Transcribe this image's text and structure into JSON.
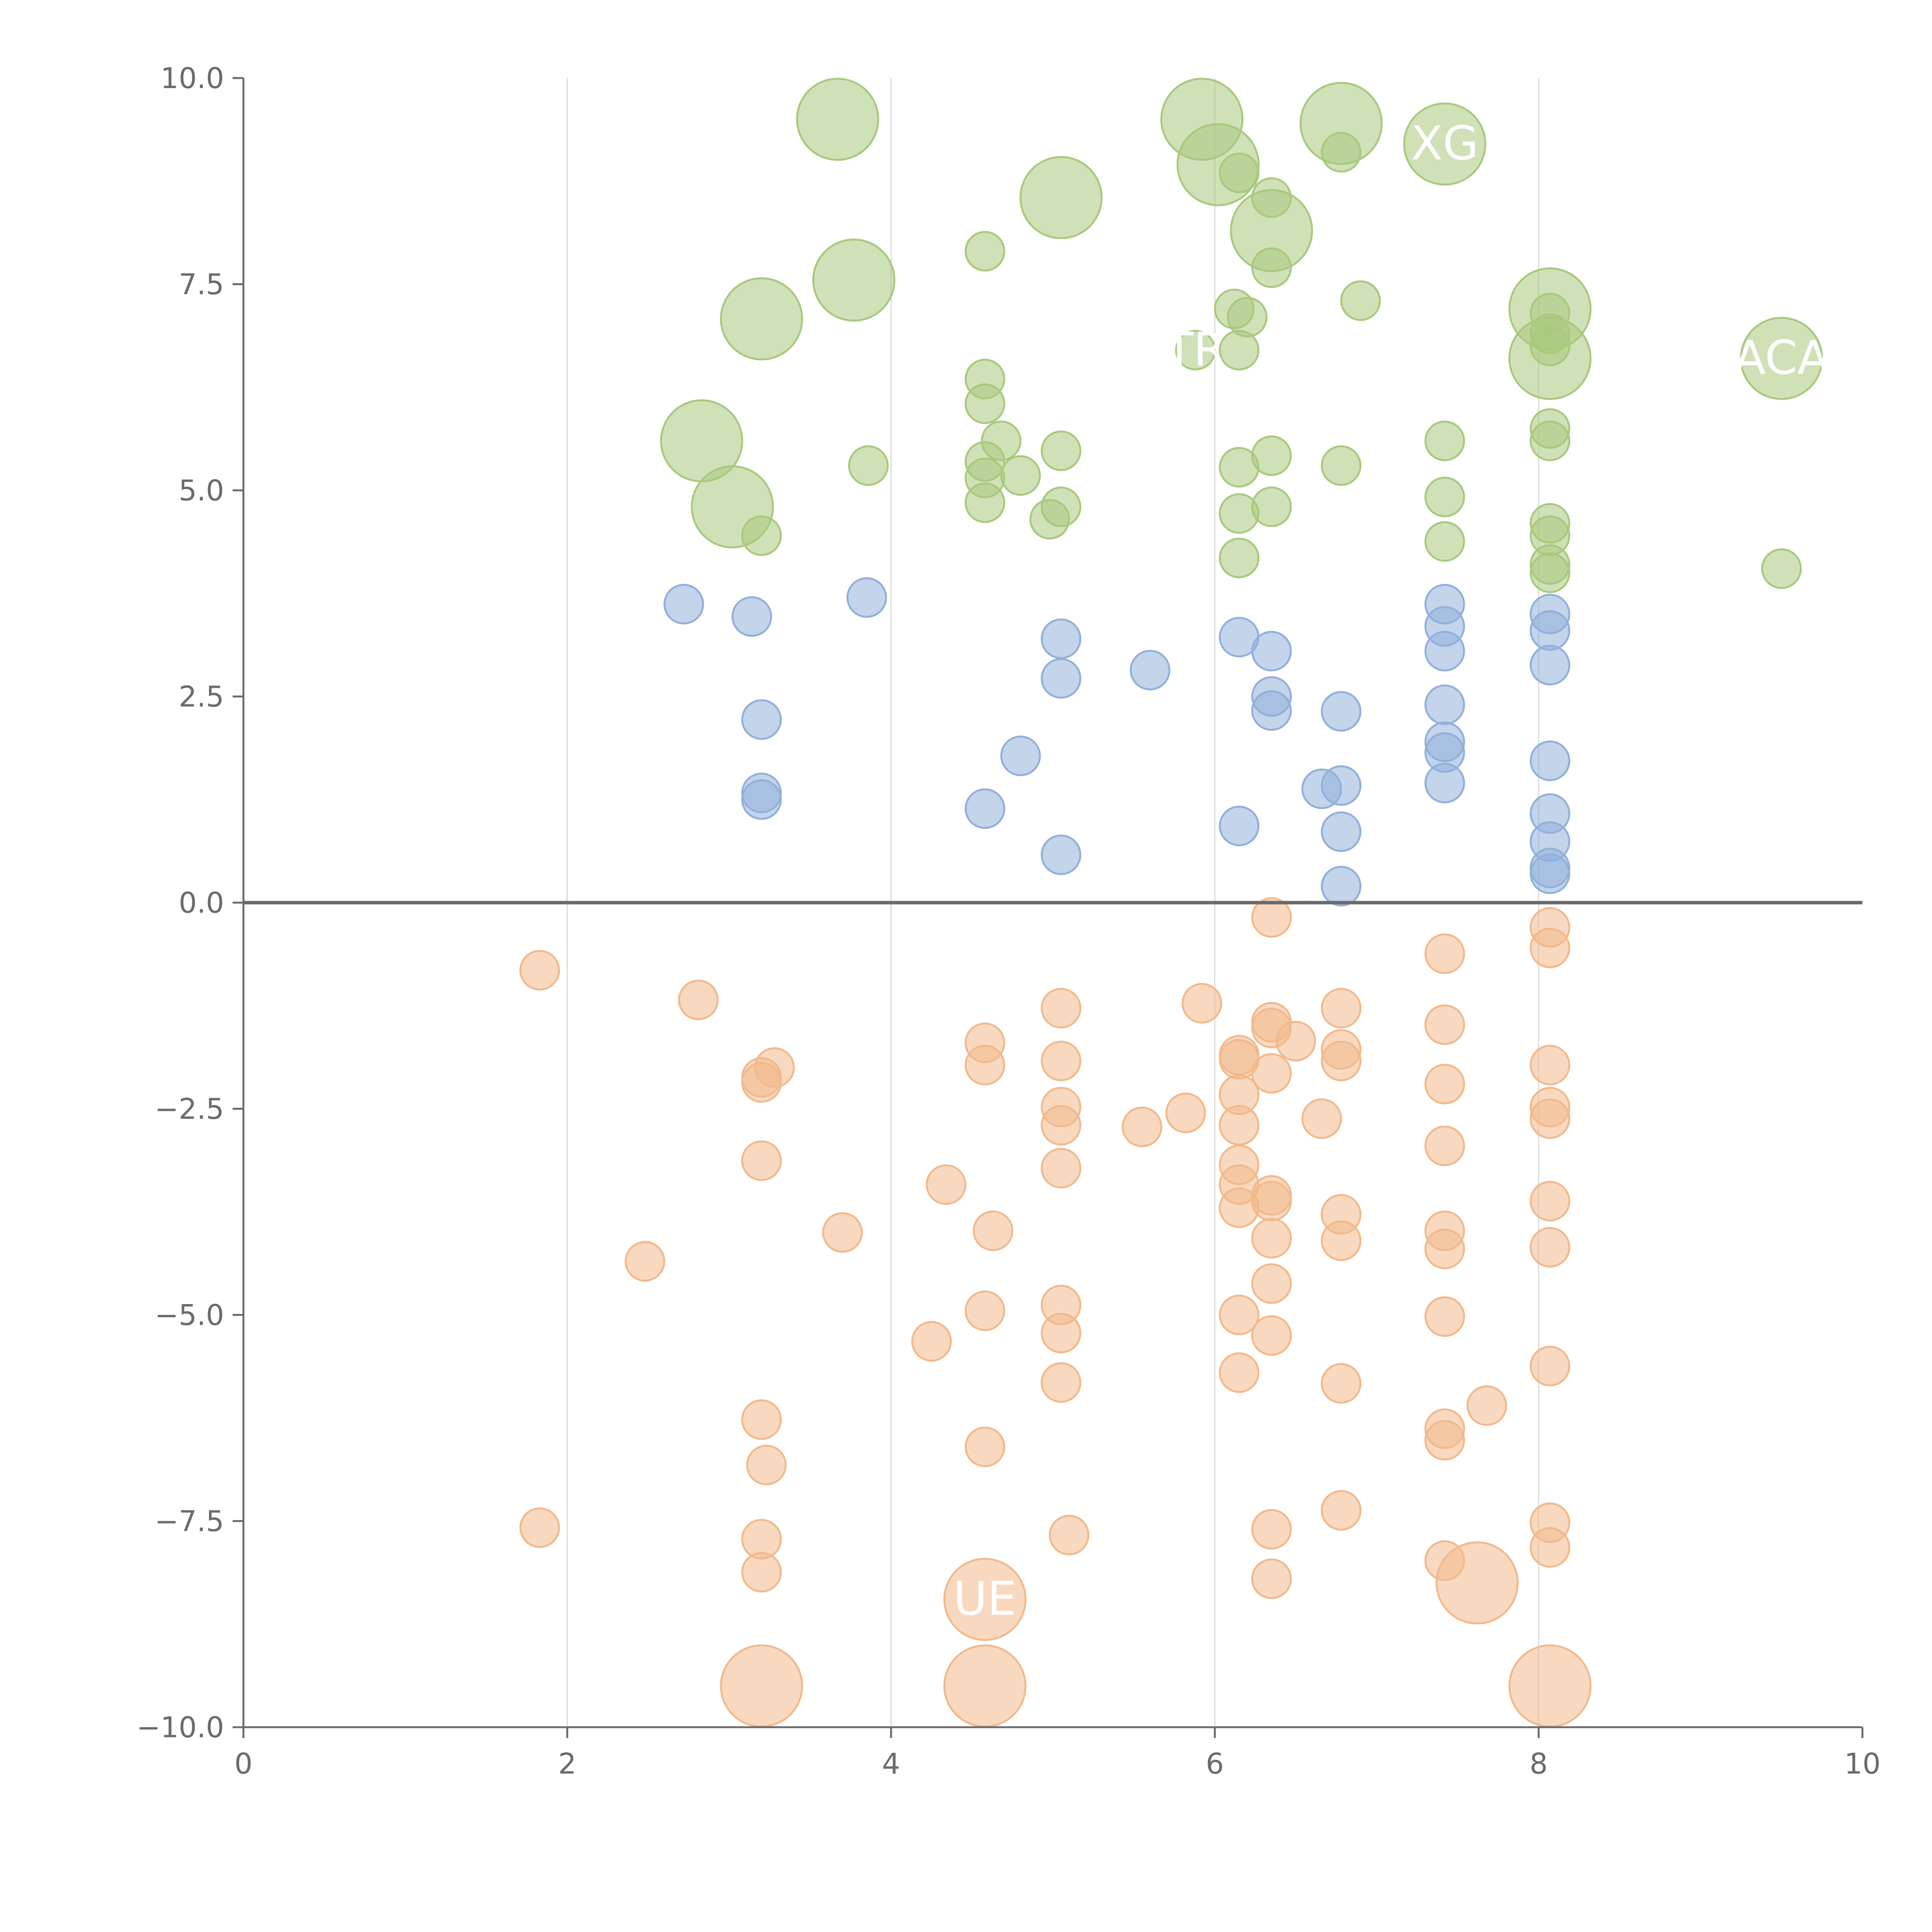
{
  "chart_data": {
    "type": "scatter",
    "title": "",
    "xlabel": "",
    "ylabel": "",
    "xlim": [
      0,
      10
    ],
    "ylim": [
      -10,
      10
    ],
    "x_ticks": [
      0,
      2,
      4,
      6,
      8,
      10
    ],
    "y_ticks": [
      -10,
      -7.5,
      -5,
      -2.5,
      0,
      2.5,
      5,
      7.5,
      10
    ],
    "x_tick_labels": [
      "0",
      "2",
      "4",
      "6",
      "8",
      "10"
    ],
    "y_tick_labels": [
      "−10.0",
      "−7.5",
      "−5.0",
      "−2.5",
      "0.0",
      "2.5",
      "5.0",
      "7.5",
      "10.0"
    ],
    "vertical_grid_at": [
      2,
      4,
      6,
      8
    ],
    "zero_line": 0,
    "series": [
      {
        "color": "#a9c97d",
        "points": [
          {
            "x": 3.67,
            "y": 9.5,
            "size": 3
          },
          {
            "x": 5.92,
            "y": 9.5,
            "size": 3
          },
          {
            "x": 6.78,
            "y": 9.45,
            "size": 3
          },
          {
            "x": 7.42,
            "y": 9.2,
            "size": 3,
            "label": "XG"
          },
          {
            "x": 6.02,
            "y": 8.95,
            "size": 3
          },
          {
            "x": 6.15,
            "y": 8.85,
            "size": 1
          },
          {
            "x": 6.78,
            "y": 9.1,
            "size": 1
          },
          {
            "x": 5.05,
            "y": 8.55,
            "size": 3
          },
          {
            "x": 6.35,
            "y": 8.55,
            "size": 1
          },
          {
            "x": 6.35,
            "y": 8.15,
            "size": 3
          },
          {
            "x": 4.58,
            "y": 7.9,
            "size": 1
          },
          {
            "x": 6.35,
            "y": 7.7,
            "size": 1
          },
          {
            "x": 3.77,
            "y": 7.55,
            "size": 3
          },
          {
            "x": 3.2,
            "y": 7.08,
            "size": 3
          },
          {
            "x": 6.9,
            "y": 7.3,
            "size": 1
          },
          {
            "x": 6.12,
            "y": 7.2,
            "size": 1
          },
          {
            "x": 6.2,
            "y": 7.1,
            "size": 1
          },
          {
            "x": 8.07,
            "y": 7.2,
            "size": 3
          },
          {
            "x": 8.07,
            "y": 7.15,
            "size": 1
          },
          {
            "x": 8.07,
            "y": 6.9,
            "size": 1
          },
          {
            "x": 8.07,
            "y": 6.75,
            "size": 1
          },
          {
            "x": 5.88,
            "y": 6.7,
            "size": 1,
            "label": "TR"
          },
          {
            "x": 6.15,
            "y": 6.7,
            "size": 1
          },
          {
            "x": 8.07,
            "y": 6.6,
            "size": 3
          },
          {
            "x": 9.5,
            "y": 6.6,
            "size": 3,
            "label": "ACA"
          },
          {
            "x": 4.58,
            "y": 6.35,
            "size": 1
          },
          {
            "x": 4.58,
            "y": 6.05,
            "size": 1
          },
          {
            "x": 2.83,
            "y": 5.6,
            "size": 3
          },
          {
            "x": 4.68,
            "y": 5.6,
            "size": 1
          },
          {
            "x": 7.42,
            "y": 5.6,
            "size": 1
          },
          {
            "x": 8.07,
            "y": 5.75,
            "size": 1
          },
          {
            "x": 8.07,
            "y": 5.6,
            "size": 1
          },
          {
            "x": 5.05,
            "y": 5.48,
            "size": 1
          },
          {
            "x": 6.35,
            "y": 5.42,
            "size": 1
          },
          {
            "x": 4.58,
            "y": 5.35,
            "size": 1
          },
          {
            "x": 3.86,
            "y": 5.3,
            "size": 1
          },
          {
            "x": 6.78,
            "y": 5.3,
            "size": 1
          },
          {
            "x": 6.15,
            "y": 5.28,
            "size": 1
          },
          {
            "x": 4.58,
            "y": 5.15,
            "size": 1
          },
          {
            "x": 4.8,
            "y": 5.18,
            "size": 1
          },
          {
            "x": 7.42,
            "y": 4.92,
            "size": 1
          },
          {
            "x": 4.58,
            "y": 4.85,
            "size": 1
          },
          {
            "x": 3.02,
            "y": 4.8,
            "size": 3
          },
          {
            "x": 5.05,
            "y": 4.8,
            "size": 1
          },
          {
            "x": 6.35,
            "y": 4.8,
            "size": 1
          },
          {
            "x": 6.15,
            "y": 4.72,
            "size": 1
          },
          {
            "x": 4.98,
            "y": 4.65,
            "size": 1
          },
          {
            "x": 8.07,
            "y": 4.6,
            "size": 1
          },
          {
            "x": 8.07,
            "y": 4.45,
            "size": 1
          },
          {
            "x": 3.2,
            "y": 4.45,
            "size": 1
          },
          {
            "x": 7.42,
            "y": 4.38,
            "size": 1
          },
          {
            "x": 6.15,
            "y": 4.18,
            "size": 1
          },
          {
            "x": 8.07,
            "y": 4.1,
            "size": 1
          },
          {
            "x": 8.07,
            "y": 4.0,
            "size": 1
          },
          {
            "x": 9.5,
            "y": 4.05,
            "size": 1
          }
        ]
      },
      {
        "color": "#92b0db",
        "points": [
          {
            "x": 3.85,
            "y": 3.7,
            "size": 1
          },
          {
            "x": 2.72,
            "y": 3.62,
            "size": 1
          },
          {
            "x": 7.42,
            "y": 3.62,
            "size": 1
          },
          {
            "x": 3.14,
            "y": 3.47,
            "size": 1
          },
          {
            "x": 8.07,
            "y": 3.5,
            "size": 1
          },
          {
            "x": 7.42,
            "y": 3.35,
            "size": 1
          },
          {
            "x": 8.07,
            "y": 3.3,
            "size": 1
          },
          {
            "x": 6.15,
            "y": 3.22,
            "size": 1
          },
          {
            "x": 5.05,
            "y": 3.2,
            "size": 1
          },
          {
            "x": 6.35,
            "y": 3.05,
            "size": 1
          },
          {
            "x": 7.42,
            "y": 3.05,
            "size": 1
          },
          {
            "x": 8.07,
            "y": 2.88,
            "size": 1
          },
          {
            "x": 5.6,
            "y": 2.82,
            "size": 1
          },
          {
            "x": 5.05,
            "y": 2.72,
            "size": 1
          },
          {
            "x": 6.35,
            "y": 2.5,
            "size": 1
          },
          {
            "x": 7.42,
            "y": 2.4,
            "size": 1
          },
          {
            "x": 6.35,
            "y": 2.33,
            "size": 1
          },
          {
            "x": 6.78,
            "y": 2.32,
            "size": 1
          },
          {
            "x": 3.2,
            "y": 2.22,
            "size": 1
          },
          {
            "x": 7.42,
            "y": 1.95,
            "size": 1
          },
          {
            "x": 7.42,
            "y": 1.82,
            "size": 1
          },
          {
            "x": 4.8,
            "y": 1.78,
            "size": 1
          },
          {
            "x": 8.07,
            "y": 1.72,
            "size": 1
          },
          {
            "x": 7.42,
            "y": 1.45,
            "size": 1
          },
          {
            "x": 6.78,
            "y": 1.42,
            "size": 1
          },
          {
            "x": 6.66,
            "y": 1.38,
            "size": 1
          },
          {
            "x": 3.2,
            "y": 1.33,
            "size": 1
          },
          {
            "x": 3.2,
            "y": 1.25,
            "size": 1
          },
          {
            "x": 4.58,
            "y": 1.14,
            "size": 1
          },
          {
            "x": 8.07,
            "y": 1.08,
            "size": 1
          },
          {
            "x": 6.15,
            "y": 0.93,
            "size": 1
          },
          {
            "x": 6.78,
            "y": 0.86,
            "size": 1
          },
          {
            "x": 8.07,
            "y": 0.74,
            "size": 1
          },
          {
            "x": 5.05,
            "y": 0.58,
            "size": 1
          },
          {
            "x": 8.07,
            "y": 0.42,
            "size": 1
          },
          {
            "x": 8.07,
            "y": 0.35,
            "size": 1
          },
          {
            "x": 6.78,
            "y": 0.2,
            "size": 1
          }
        ]
      },
      {
        "color": "#f2b98c",
        "points": [
          {
            "x": 6.35,
            "y": -0.18,
            "size": 1
          },
          {
            "x": 8.07,
            "y": -0.3,
            "size": 1
          },
          {
            "x": 8.07,
            "y": -0.55,
            "size": 1
          },
          {
            "x": 7.42,
            "y": -0.62,
            "size": 1
          },
          {
            "x": 1.83,
            "y": -0.82,
            "size": 1
          },
          {
            "x": 2.81,
            "y": -1.18,
            "size": 1
          },
          {
            "x": 5.92,
            "y": -1.22,
            "size": 1
          },
          {
            "x": 5.05,
            "y": -1.28,
            "size": 1
          },
          {
            "x": 6.78,
            "y": -1.28,
            "size": 1
          },
          {
            "x": 6.35,
            "y": -1.45,
            "size": 1
          },
          {
            "x": 6.35,
            "y": -1.52,
            "size": 1
          },
          {
            "x": 7.42,
            "y": -1.48,
            "size": 1
          },
          {
            "x": 6.5,
            "y": -1.68,
            "size": 1
          },
          {
            "x": 4.58,
            "y": -1.7,
            "size": 1
          },
          {
            "x": 6.78,
            "y": -1.78,
            "size": 1
          },
          {
            "x": 6.15,
            "y": -1.85,
            "size": 1
          },
          {
            "x": 6.15,
            "y": -1.9,
            "size": 1
          },
          {
            "x": 5.05,
            "y": -1.92,
            "size": 1
          },
          {
            "x": 6.78,
            "y": -1.92,
            "size": 1
          },
          {
            "x": 4.58,
            "y": -1.97,
            "size": 1
          },
          {
            "x": 8.07,
            "y": -1.97,
            "size": 1
          },
          {
            "x": 3.28,
            "y": -2.0,
            "size": 1
          },
          {
            "x": 6.35,
            "y": -2.07,
            "size": 1
          },
          {
            "x": 3.2,
            "y": -2.12,
            "size": 1
          },
          {
            "x": 3.2,
            "y": -2.18,
            "size": 1
          },
          {
            "x": 7.42,
            "y": -2.2,
            "size": 1
          },
          {
            "x": 6.15,
            "y": -2.33,
            "size": 1
          },
          {
            "x": 5.05,
            "y": -2.48,
            "size": 1
          },
          {
            "x": 8.07,
            "y": -2.48,
            "size": 1
          },
          {
            "x": 5.82,
            "y": -2.55,
            "size": 1
          },
          {
            "x": 8.07,
            "y": -2.62,
            "size": 1
          },
          {
            "x": 6.66,
            "y": -2.62,
            "size": 1
          },
          {
            "x": 5.05,
            "y": -2.7,
            "size": 1
          },
          {
            "x": 6.15,
            "y": -2.7,
            "size": 1
          },
          {
            "x": 5.55,
            "y": -2.72,
            "size": 1
          },
          {
            "x": 7.42,
            "y": -2.95,
            "size": 1
          },
          {
            "x": 3.2,
            "y": -3.13,
            "size": 1
          },
          {
            "x": 6.15,
            "y": -3.18,
            "size": 1
          },
          {
            "x": 5.05,
            "y": -3.22,
            "size": 1
          },
          {
            "x": 6.15,
            "y": -3.42,
            "size": 1
          },
          {
            "x": 4.34,
            "y": -3.42,
            "size": 1
          },
          {
            "x": 6.35,
            "y": -3.55,
            "size": 1
          },
          {
            "x": 6.35,
            "y": -3.62,
            "size": 1
          },
          {
            "x": 8.07,
            "y": -3.62,
            "size": 1
          },
          {
            "x": 6.15,
            "y": -3.7,
            "size": 1
          },
          {
            "x": 6.78,
            "y": -3.78,
            "size": 1
          },
          {
            "x": 7.42,
            "y": -3.98,
            "size": 1
          },
          {
            "x": 4.63,
            "y": -3.98,
            "size": 1
          },
          {
            "x": 3.7,
            "y": -4.0,
            "size": 1
          },
          {
            "x": 6.35,
            "y": -4.07,
            "size": 1
          },
          {
            "x": 6.78,
            "y": -4.1,
            "size": 1
          },
          {
            "x": 8.07,
            "y": -4.18,
            "size": 1
          },
          {
            "x": 7.42,
            "y": -4.2,
            "size": 1
          },
          {
            "x": 2.48,
            "y": -4.35,
            "size": 1
          },
          {
            "x": 6.35,
            "y": -4.62,
            "size": 1
          },
          {
            "x": 5.05,
            "y": -4.88,
            "size": 1
          },
          {
            "x": 4.58,
            "y": -4.95,
            "size": 1
          },
          {
            "x": 6.15,
            "y": -5.0,
            "size": 1
          },
          {
            "x": 7.42,
            "y": -5.02,
            "size": 1
          },
          {
            "x": 5.05,
            "y": -5.22,
            "size": 1
          },
          {
            "x": 6.35,
            "y": -5.25,
            "size": 1
          },
          {
            "x": 4.25,
            "y": -5.32,
            "size": 1
          },
          {
            "x": 8.07,
            "y": -5.62,
            "size": 1
          },
          {
            "x": 6.15,
            "y": -5.7,
            "size": 1
          },
          {
            "x": 5.05,
            "y": -5.82,
            "size": 1
          },
          {
            "x": 6.78,
            "y": -5.83,
            "size": 1
          },
          {
            "x": 7.68,
            "y": -6.1,
            "size": 1
          },
          {
            "x": 3.2,
            "y": -6.27,
            "size": 1
          },
          {
            "x": 7.42,
            "y": -6.38,
            "size": 1
          },
          {
            "x": 7.42,
            "y": -6.52,
            "size": 1
          },
          {
            "x": 4.58,
            "y": -6.6,
            "size": 1
          },
          {
            "x": 3.23,
            "y": -6.82,
            "size": 1
          },
          {
            "x": 6.78,
            "y": -7.37,
            "size": 1
          },
          {
            "x": 8.07,
            "y": -7.52,
            "size": 1
          },
          {
            "x": 1.83,
            "y": -7.58,
            "size": 1
          },
          {
            "x": 6.35,
            "y": -7.6,
            "size": 1
          },
          {
            "x": 5.1,
            "y": -7.67,
            "size": 1
          },
          {
            "x": 3.2,
            "y": -7.72,
            "size": 1
          },
          {
            "x": 8.07,
            "y": -7.82,
            "size": 1
          },
          {
            "x": 7.42,
            "y": -7.98,
            "size": 1
          },
          {
            "x": 3.2,
            "y": -8.12,
            "size": 1
          },
          {
            "x": 6.35,
            "y": -8.2,
            "size": 1
          },
          {
            "x": 7.62,
            "y": -8.25,
            "size": 3
          },
          {
            "x": 4.58,
            "y": -8.45,
            "size": 3,
            "label": "UE"
          },
          {
            "x": 3.2,
            "y": -9.5,
            "size": 3
          },
          {
            "x": 4.58,
            "y": -9.5,
            "size": 3
          },
          {
            "x": 8.07,
            "y": -9.5,
            "size": 3
          }
        ]
      }
    ]
  }
}
